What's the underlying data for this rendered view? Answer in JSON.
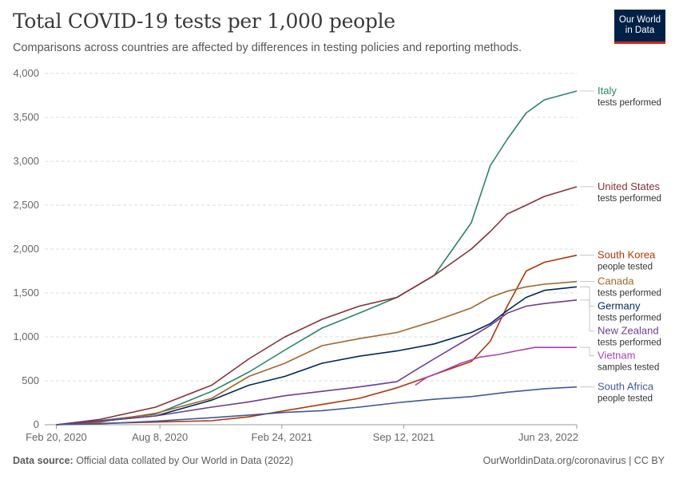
{
  "header": {
    "title": "Total COVID-19 tests per 1,000 people",
    "subtitle": "Comparisons across countries are affected by differences in testing policies and reporting methods."
  },
  "logo": {
    "line1": "Our World",
    "line2": "in Data",
    "bg": "#002147",
    "accent": "#ce261e"
  },
  "footer": {
    "source_label": "Data source:",
    "source_text": "Official data collated by Our World in Data (2022)",
    "right_text": "OurWorldinData.org/coronavirus | CC BY"
  },
  "chart_data": {
    "type": "line",
    "title": "Total COVID-19 tests per 1,000 people",
    "xlabel": "",
    "ylabel": "",
    "ylim": [
      0,
      4000
    ],
    "yticks": [
      0,
      500,
      1000,
      1500,
      2000,
      2500,
      3000,
      3500,
      4000
    ],
    "ytick_labels": [
      "0",
      "500",
      "1,000",
      "1,500",
      "2,000",
      "2,500",
      "3,000",
      "3,500",
      "4,000"
    ],
    "xlim": [
      "2020-02-01",
      "2022-06-23"
    ],
    "xticks": [
      "2020-02-20",
      "2020-08-08",
      "2021-02-24",
      "2021-09-12",
      "2022-06-23"
    ],
    "xtick_labels": [
      "Feb 20, 2020",
      "Aug 8, 2020",
      "Feb 24, 2021",
      "Sep 12, 2021",
      "Jun 23, 2022"
    ],
    "grid": "horizontal dashed",
    "legend": "right, end-of-line labels",
    "series": [
      {
        "name": "Italy",
        "note": "tests performed",
        "color": "#2c8465",
        "points": [
          [
            "2020-02-20",
            0
          ],
          [
            "2020-05-01",
            45
          ],
          [
            "2020-08-01",
            120
          ],
          [
            "2020-11-01",
            380
          ],
          [
            "2021-01-01",
            600
          ],
          [
            "2021-03-01",
            850
          ],
          [
            "2021-05-01",
            1100
          ],
          [
            "2021-07-01",
            1270
          ],
          [
            "2021-09-01",
            1450
          ],
          [
            "2021-11-01",
            1700
          ],
          [
            "2022-01-01",
            2300
          ],
          [
            "2022-02-01",
            2950
          ],
          [
            "2022-03-01",
            3250
          ],
          [
            "2022-04-01",
            3550
          ],
          [
            "2022-05-01",
            3700
          ],
          [
            "2022-06-23",
            3800
          ]
        ]
      },
      {
        "name": "United States",
        "note": "tests performed",
        "color": "#883039",
        "points": [
          [
            "2020-02-20",
            0
          ],
          [
            "2020-05-01",
            60
          ],
          [
            "2020-08-01",
            200
          ],
          [
            "2020-11-01",
            450
          ],
          [
            "2021-01-01",
            750
          ],
          [
            "2021-03-01",
            1000
          ],
          [
            "2021-05-01",
            1200
          ],
          [
            "2021-07-01",
            1350
          ],
          [
            "2021-09-01",
            1450
          ],
          [
            "2021-11-01",
            1700
          ],
          [
            "2022-01-01",
            2000
          ],
          [
            "2022-02-01",
            2200
          ],
          [
            "2022-03-01",
            2400
          ],
          [
            "2022-04-01",
            2500
          ],
          [
            "2022-05-01",
            2600
          ],
          [
            "2022-06-23",
            2710
          ]
        ]
      },
      {
        "name": "South Korea",
        "note": "people tested",
        "color": "#b13507",
        "points": [
          [
            "2020-02-20",
            0
          ],
          [
            "2020-05-01",
            15
          ],
          [
            "2020-08-01",
            30
          ],
          [
            "2020-11-01",
            45
          ],
          [
            "2021-01-01",
            90
          ],
          [
            "2021-03-01",
            160
          ],
          [
            "2021-05-01",
            230
          ],
          [
            "2021-07-01",
            300
          ],
          [
            "2021-09-01",
            420
          ],
          [
            "2021-11-01",
            570
          ],
          [
            "2022-01-01",
            720
          ],
          [
            "2022-02-01",
            950
          ],
          [
            "2022-03-01",
            1350
          ],
          [
            "2022-04-01",
            1750
          ],
          [
            "2022-05-01",
            1850
          ],
          [
            "2022-06-23",
            1930
          ]
        ]
      },
      {
        "name": "Canada",
        "note": "tests performed",
        "color": "#a2652a",
        "points": [
          [
            "2020-02-20",
            0
          ],
          [
            "2020-05-01",
            30
          ],
          [
            "2020-08-01",
            130
          ],
          [
            "2020-11-01",
            300
          ],
          [
            "2021-01-01",
            550
          ],
          [
            "2021-03-01",
            700
          ],
          [
            "2021-05-01",
            900
          ],
          [
            "2021-07-01",
            980
          ],
          [
            "2021-09-01",
            1050
          ],
          [
            "2021-11-01",
            1180
          ],
          [
            "2022-01-01",
            1330
          ],
          [
            "2022-02-01",
            1450
          ],
          [
            "2022-03-01",
            1520
          ],
          [
            "2022-04-01",
            1570
          ],
          [
            "2022-05-01",
            1600
          ],
          [
            "2022-06-23",
            1630
          ]
        ]
      },
      {
        "name": "Germany",
        "note": "tests performed",
        "color": "#00295b",
        "points": [
          [
            "2020-02-20",
            0
          ],
          [
            "2020-05-01",
            40
          ],
          [
            "2020-08-01",
            100
          ],
          [
            "2020-11-01",
            280
          ],
          [
            "2021-01-01",
            450
          ],
          [
            "2021-03-01",
            550
          ],
          [
            "2021-05-01",
            700
          ],
          [
            "2021-07-01",
            780
          ],
          [
            "2021-09-01",
            840
          ],
          [
            "2021-11-01",
            920
          ],
          [
            "2022-01-01",
            1050
          ],
          [
            "2022-02-01",
            1150
          ],
          [
            "2022-03-01",
            1300
          ],
          [
            "2022-04-01",
            1450
          ],
          [
            "2022-05-01",
            1530
          ],
          [
            "2022-06-23",
            1570
          ]
        ]
      },
      {
        "name": "New Zealand",
        "note": "tests performed",
        "color": "#6d3e91",
        "points": [
          [
            "2020-02-20",
            0
          ],
          [
            "2020-05-01",
            40
          ],
          [
            "2020-08-01",
            100
          ],
          [
            "2020-11-01",
            200
          ],
          [
            "2021-01-01",
            260
          ],
          [
            "2021-03-01",
            330
          ],
          [
            "2021-05-01",
            380
          ],
          [
            "2021-07-01",
            430
          ],
          [
            "2021-09-01",
            490
          ],
          [
            "2021-10-01",
            620
          ],
          [
            "2021-11-01",
            750
          ],
          [
            "2022-01-01",
            1000
          ],
          [
            "2022-02-01",
            1130
          ],
          [
            "2022-03-01",
            1270
          ],
          [
            "2022-04-01",
            1350
          ],
          [
            "2022-05-01",
            1380
          ],
          [
            "2022-06-23",
            1420
          ]
        ]
      },
      {
        "name": "Vietnam",
        "note": "samples tested",
        "color": "#a840b5",
        "points": [
          [
            "2021-10-01",
            450
          ],
          [
            "2021-10-20",
            540
          ],
          [
            "2021-11-15",
            610
          ],
          [
            "2021-12-15",
            700
          ],
          [
            "2022-01-15",
            770
          ],
          [
            "2022-02-15",
            800
          ],
          [
            "2022-03-15",
            840
          ],
          [
            "2022-04-15",
            880
          ],
          [
            "2022-05-15",
            880
          ],
          [
            "2022-06-23",
            880
          ]
        ]
      },
      {
        "name": "South Africa",
        "note": "people tested",
        "color": "#3c5a9a",
        "points": [
          [
            "2020-02-20",
            0
          ],
          [
            "2020-05-01",
            10
          ],
          [
            "2020-08-01",
            40
          ],
          [
            "2020-11-01",
            80
          ],
          [
            "2021-01-01",
            110
          ],
          [
            "2021-03-01",
            140
          ],
          [
            "2021-05-01",
            160
          ],
          [
            "2021-07-01",
            200
          ],
          [
            "2021-09-01",
            250
          ],
          [
            "2021-11-01",
            290
          ],
          [
            "2022-01-01",
            320
          ],
          [
            "2022-03-01",
            370
          ],
          [
            "2022-05-01",
            410
          ],
          [
            "2022-06-23",
            430
          ]
        ]
      }
    ]
  }
}
